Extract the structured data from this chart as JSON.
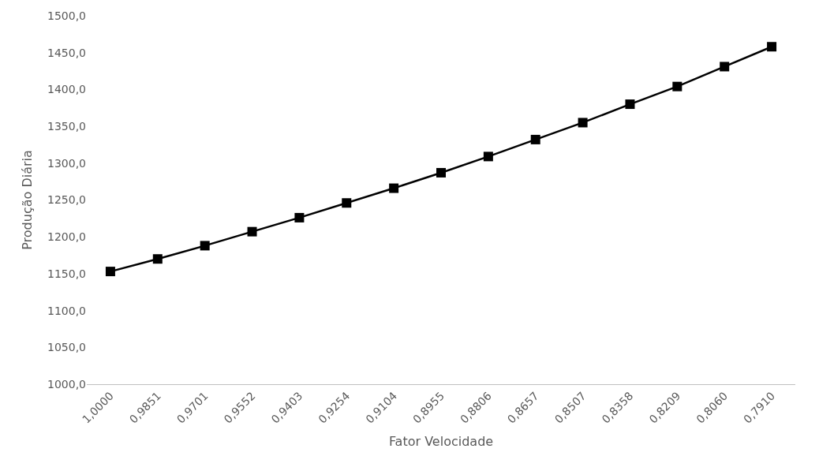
{
  "chart_data": {
    "type": "line",
    "xlabel": "Fator Velocidade",
    "ylabel": "Produção Diária",
    "categories": [
      "1,0000",
      "0,9851",
      "0,9701",
      "0,9552",
      "0,9403",
      "0,9254",
      "0,9104",
      "0,8955",
      "0,8806",
      "0,8657",
      "0,8507",
      "0,8358",
      "0,8209",
      "0,8060",
      "0,7910"
    ],
    "series": [
      {
        "color": "#000000",
        "values": [
          1153,
          1170,
          1188,
          1207,
          1226,
          1246,
          1266,
          1287,
          1309,
          1332,
          1355,
          1380,
          1404,
          1431,
          1458
        ]
      }
    ],
    "ylim": [
      1000,
      1500
    ],
    "yticks": [
      {
        "value": 1000,
        "label": "1000,0"
      },
      {
        "value": 1050,
        "label": "1050,0"
      },
      {
        "value": 1100,
        "label": "1100,0"
      },
      {
        "value": 1150,
        "label": "1150,0"
      },
      {
        "value": 1200,
        "label": "1200,0"
      },
      {
        "value": 1250,
        "label": "1250,0"
      },
      {
        "value": 1300,
        "label": "1300,0"
      },
      {
        "value": 1350,
        "label": "1350,0"
      },
      {
        "value": 1400,
        "label": "1400,0"
      },
      {
        "value": 1450,
        "label": "1450,0"
      },
      {
        "value": 1500,
        "label": "1500,0"
      }
    ],
    "grid": false,
    "legend": false,
    "marker": "square",
    "line_style": "solid"
  }
}
